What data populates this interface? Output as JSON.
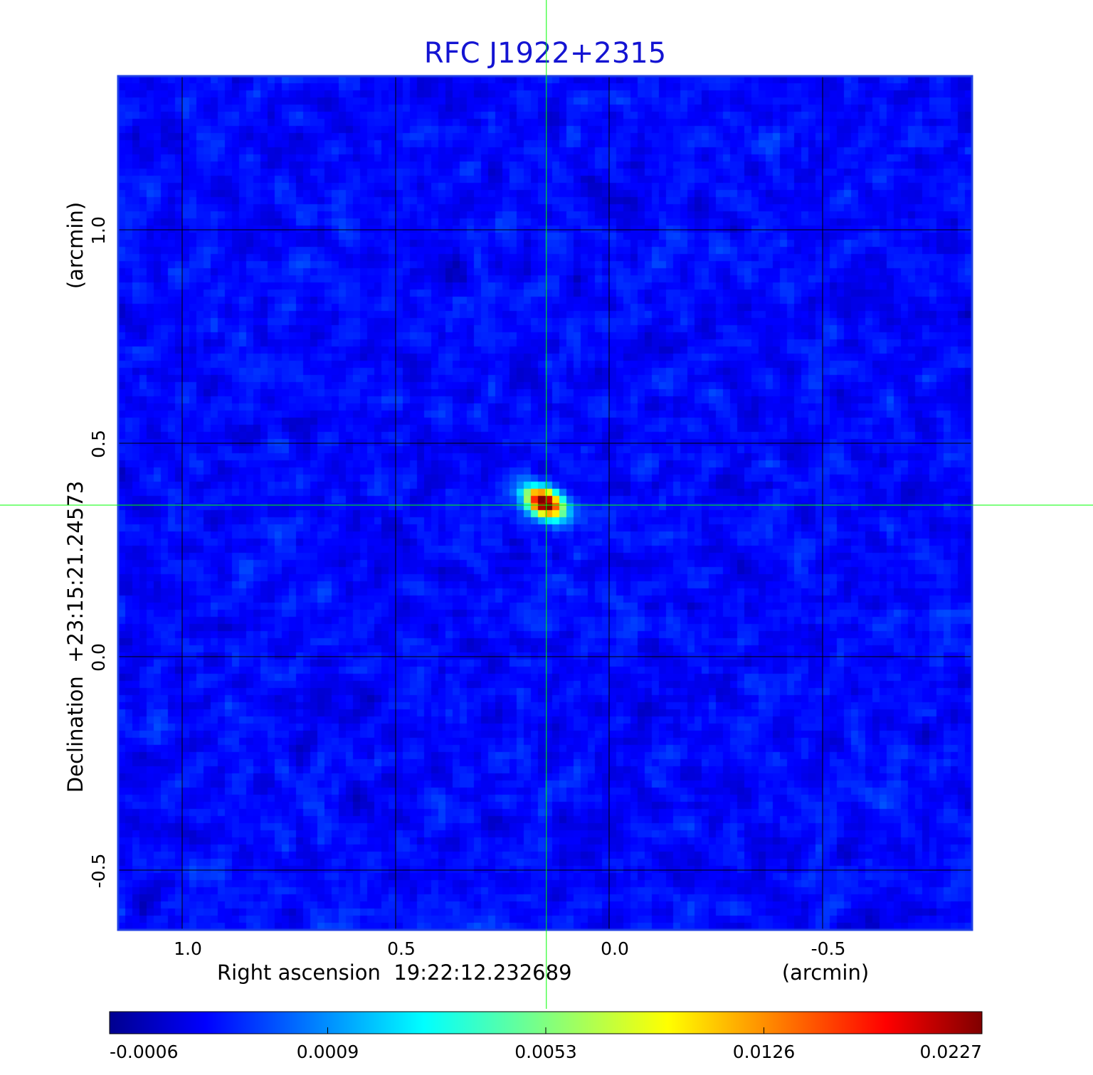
{
  "colors": {
    "title": "#1414d2",
    "frame": "#1f3fe6",
    "crosshair": "#00ff00",
    "grid": "#000000"
  },
  "chart_data": {
    "type": "heatmap",
    "title": "RFC J1922+2315",
    "xlabel": "Right ascension  19:22:12.232689",
    "xunit": "(arcmin)",
    "ylabel": "Declination  +23:15:21.24573",
    "yunit": "(arcmin)",
    "x_ticks": [
      "1.0",
      "0.5",
      "0.0",
      "-0.5"
    ],
    "y_ticks": [
      "1.0",
      "0.5",
      "0.0",
      "-0.5"
    ],
    "x_tick_values": [
      1.0,
      0.5,
      0.0,
      -0.5
    ],
    "y_tick_values": [
      1.0,
      0.5,
      0.0,
      -0.5
    ],
    "xlim": [
      1.15,
      -0.85
    ],
    "ylim": [
      -0.64,
      1.36
    ],
    "grid": true,
    "source_peak": {
      "x": 0.15,
      "y": 0.36,
      "value": 0.0227
    },
    "crosshair": {
      "x": 0.147,
      "y": 0.355
    },
    "colorbar": {
      "colormap": "jet",
      "ticks": [
        "-0.0006",
        "0.0009",
        "0.0053",
        "0.0126",
        "0.0227"
      ],
      "min": -0.0006,
      "max": 0.0227
    }
  }
}
